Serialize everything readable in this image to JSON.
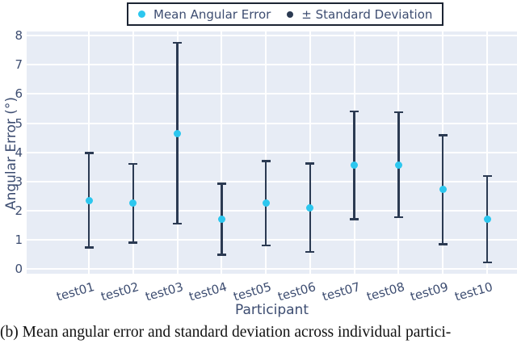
{
  "legend": {
    "items": [
      {
        "label": "Mean Angular Error",
        "marker": "cyan-dot"
      },
      {
        "label": "± Standard Deviation",
        "marker": "navy-dot"
      }
    ]
  },
  "caption": "(b) Mean angular error and standard deviation across individual partici-",
  "chart_data": {
    "type": "errorbar",
    "categories": [
      "test01",
      "test02",
      "test03",
      "test04",
      "test05",
      "test06",
      "test07",
      "test08",
      "test09",
      "test10"
    ],
    "series": [
      {
        "name": "Mean Angular Error",
        "values": [
          2.35,
          2.25,
          4.65,
          1.7,
          2.25,
          2.1,
          3.55,
          3.57,
          2.72,
          1.7
        ]
      },
      {
        "name": "Standard Deviation",
        "values": [
          1.62,
          1.35,
          3.1,
          1.22,
          1.45,
          1.52,
          1.85,
          1.8,
          1.87,
          1.48
        ]
      }
    ],
    "xlabel": "Participant",
    "ylabel": "Angular Error (°)",
    "ylim": [
      0,
      8
    ],
    "yticks": [
      0,
      1,
      2,
      3,
      4,
      5,
      6,
      7,
      8
    ],
    "grid": true,
    "legend_position": "top-center",
    "colors": {
      "mean_marker": "#2cc7ef",
      "error_bar": "#2b3a52",
      "plot_background": "#e7ecf5",
      "gridline": "#ffffff",
      "axis_text": "#3d4d71",
      "legend_border": "#1c2433"
    }
  }
}
